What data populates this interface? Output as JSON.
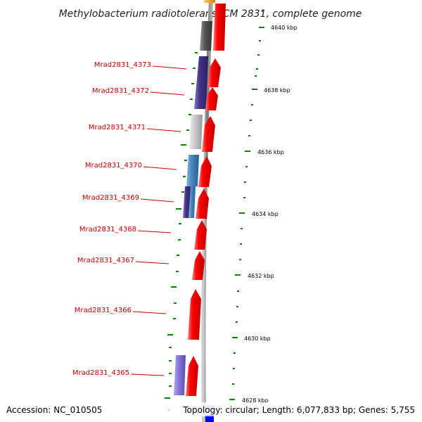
{
  "title": "Methylobacterium radiotolerans JCM 2831, complete genome",
  "footer": {
    "accession": "Accession: NC_010505",
    "summary": "Topology: circular; Length: 6,077,833 bp; Genes: 5,755"
  },
  "scale": {
    "ticks": [
      "4640 kbp",
      "4638 kbp",
      "4636 kbp",
      "4634 kbp",
      "4632 kbp",
      "4630 kbp",
      "4628 kbp"
    ]
  },
  "genes": {
    "labels": [
      "Mrad2831_4373",
      "Mrad2831_4372",
      "Mrad2831_4371",
      "Mrad2831_4370",
      "Mrad2831_4369",
      "Mrad2831_4368",
      "Mrad2831_4367",
      "Mrad2831_4366",
      "Mrad2831_4365"
    ]
  },
  "colors": {
    "forward_cds": "#ff0000",
    "backbone": "#888888",
    "tick": "#008800",
    "label": "#cc0000",
    "dark_gray": "#555555",
    "purple": "#443388",
    "light_gray": "#cccccc",
    "steel_blue": "#4a8ac0",
    "lavender": "#8877dd",
    "orange": "#ff9900",
    "blue": "#0000ff",
    "pale_blue": "#bbbbff"
  }
}
